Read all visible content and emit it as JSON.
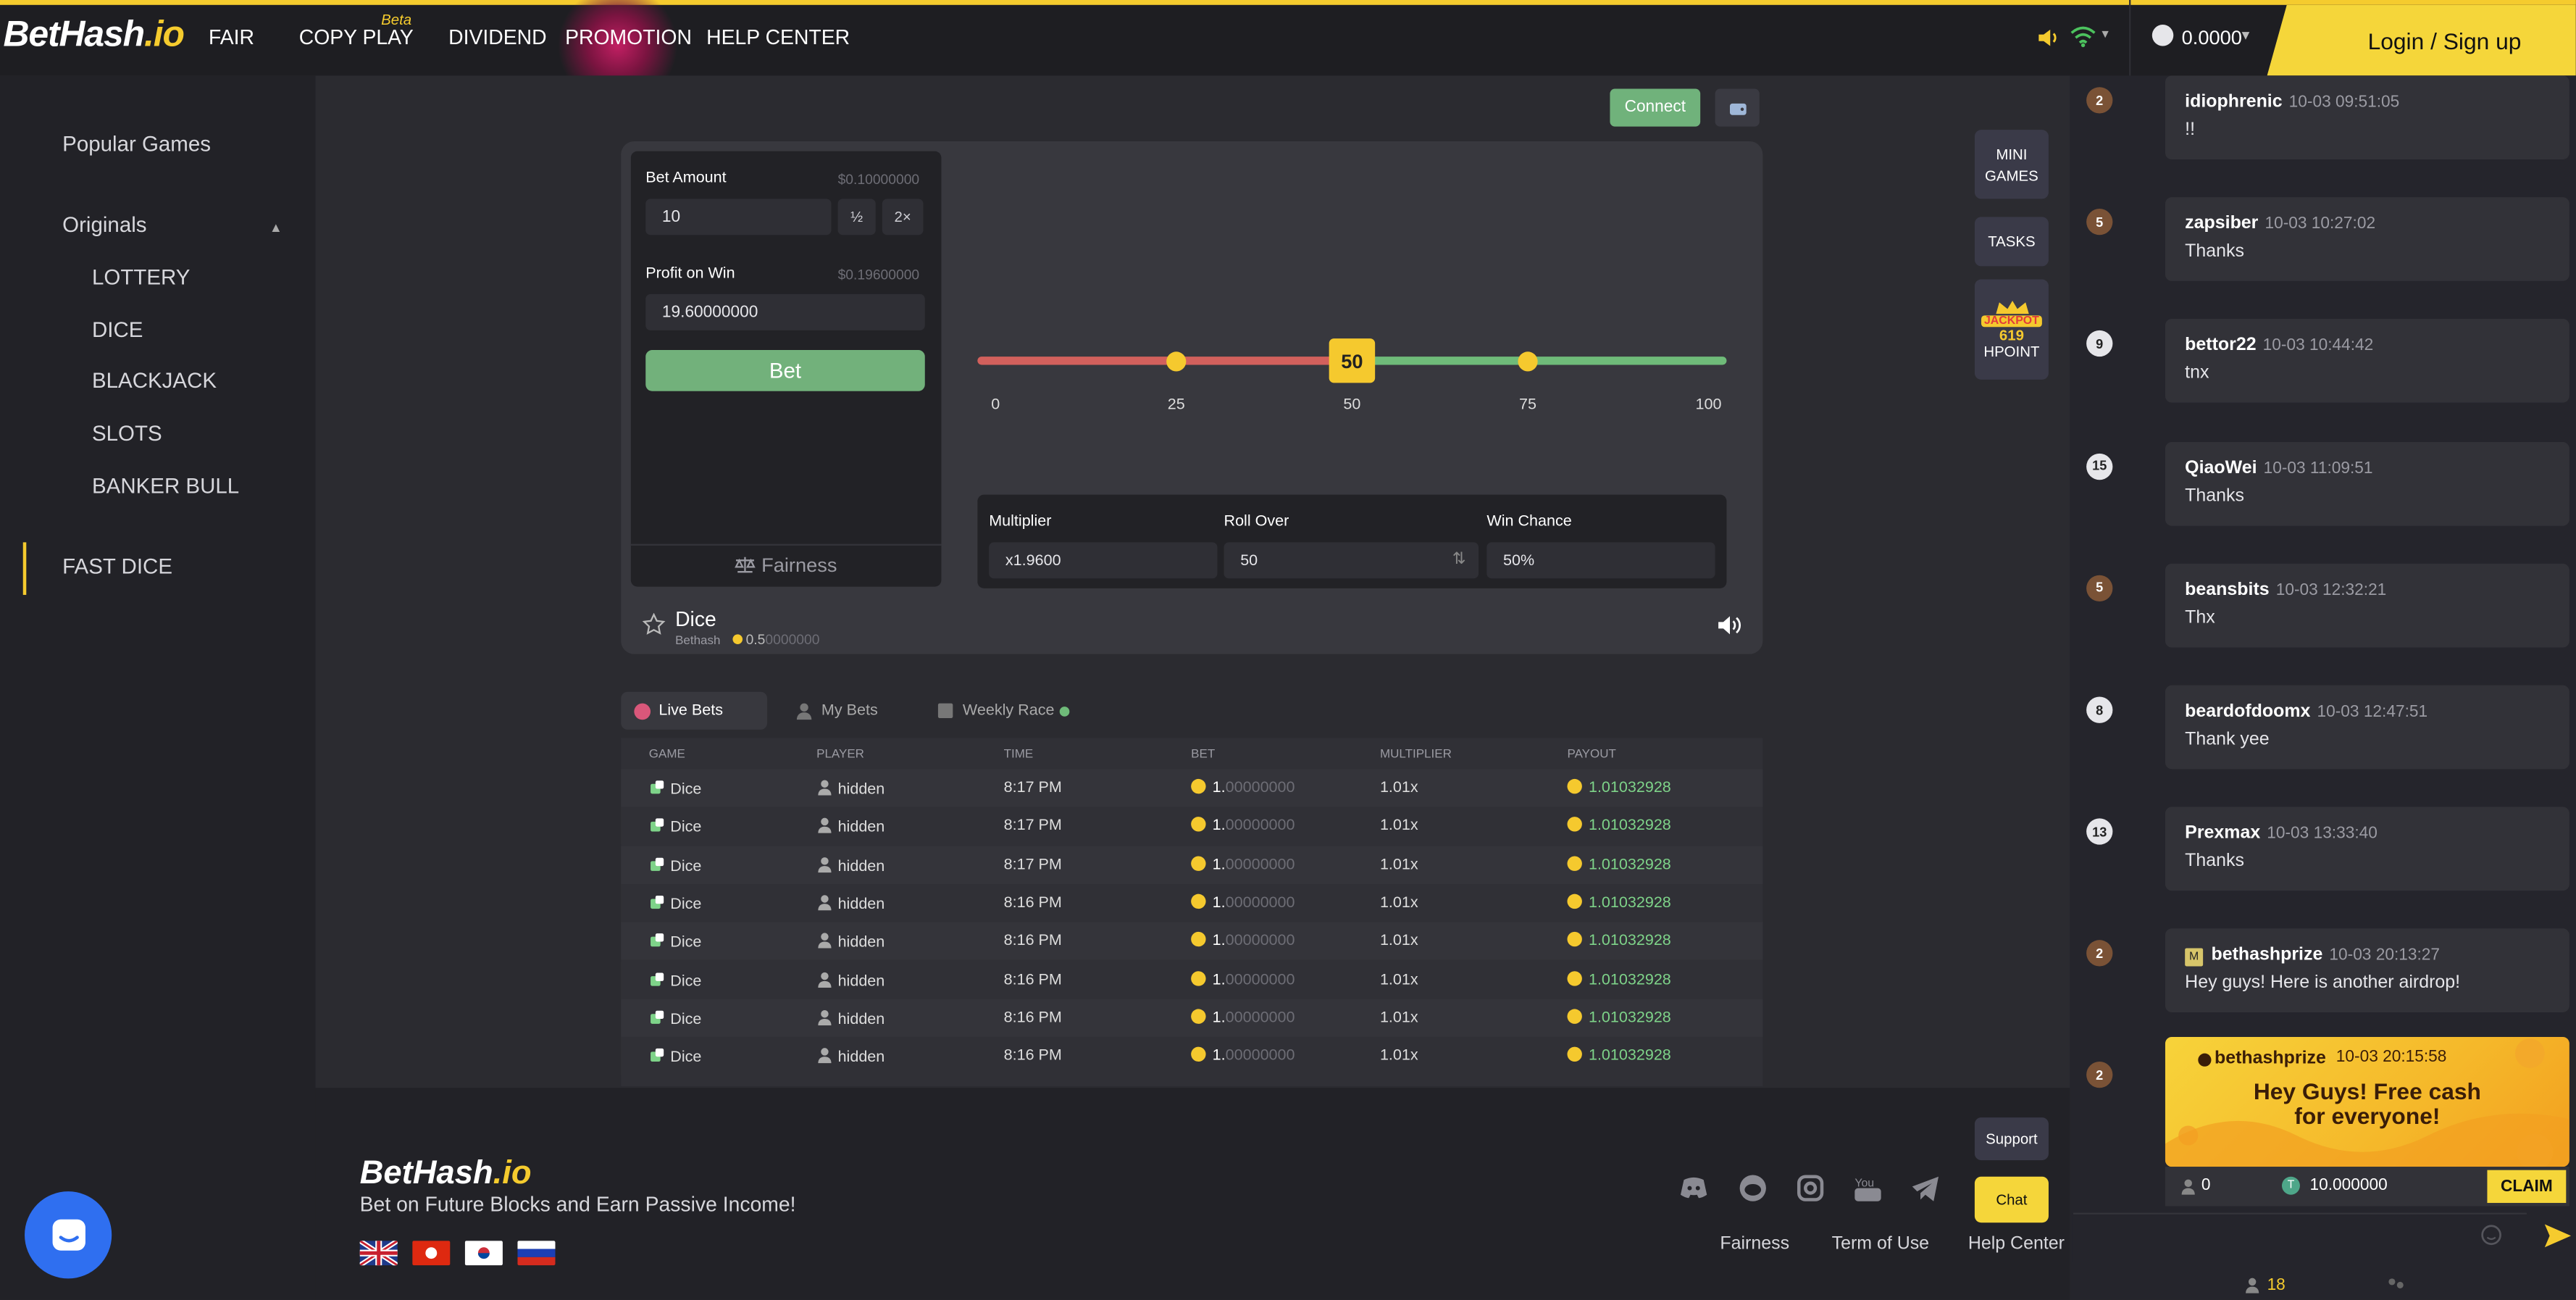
{
  "header": {
    "logo_main": "BetHash",
    "logo_suffix": ".io",
    "nav": [
      "FAIR",
      "COPY PLAY",
      "DIVIDEND",
      "PROMOTION",
      "HELP CENTER"
    ],
    "beta": "Beta",
    "balance": "0.0000",
    "login": "Login / Sign up",
    "accent": "#f5cb2e"
  },
  "sidebar": {
    "popular": "Popular Games",
    "originals": "Originals",
    "items": [
      "LOTTERY",
      "DICE",
      "BLACKJACK",
      "SLOTS",
      "BANKER BULL"
    ],
    "fast_dice": "FAST DICE"
  },
  "topactions": {
    "connect": "Connect"
  },
  "bet": {
    "amount_label": "Bet Amount",
    "amount_limit": "$0.10000000",
    "amount_value": "10",
    "half": "½",
    "double": "2×",
    "profit_label": "Profit on Win",
    "profit_limit": "$0.19600000",
    "profit_value": "19.60000000",
    "bet_button": "Bet",
    "fairness": "Fairness"
  },
  "slider": {
    "value": 50,
    "ticks": [
      "0",
      "25",
      "50",
      "75",
      "100"
    ],
    "handle": "50"
  },
  "stats": {
    "multiplier_label": "Multiplier",
    "multiplier_value": "x1.9600",
    "rollover_label": "Roll Over",
    "rollover_value": "50",
    "winchance_label": "Win Chance",
    "winchance_value": "50%"
  },
  "game": {
    "name": "Dice",
    "provider": "Bethash",
    "value_int": "0.5",
    "value_dec": "0000000"
  },
  "tabs": [
    "Live Bets",
    "My Bets",
    "Weekly Race"
  ],
  "table": {
    "headers": [
      "GAME",
      "PLAYER",
      "TIME",
      "BET",
      "MULTIPLIER",
      "PAYOUT"
    ],
    "rows": [
      {
        "game": "Dice",
        "player": "hidden",
        "time": "8:17 PM",
        "bet_int": "1.",
        "bet_dec": "00000000",
        "mult": "1.01x",
        "payout": "1.01032928"
      },
      {
        "game": "Dice",
        "player": "hidden",
        "time": "8:17 PM",
        "bet_int": "1.",
        "bet_dec": "00000000",
        "mult": "1.01x",
        "payout": "1.01032928"
      },
      {
        "game": "Dice",
        "player": "hidden",
        "time": "8:17 PM",
        "bet_int": "1.",
        "bet_dec": "00000000",
        "mult": "1.01x",
        "payout": "1.01032928"
      },
      {
        "game": "Dice",
        "player": "hidden",
        "time": "8:16 PM",
        "bet_int": "1.",
        "bet_dec": "00000000",
        "mult": "1.01x",
        "payout": "1.01032928"
      },
      {
        "game": "Dice",
        "player": "hidden",
        "time": "8:16 PM",
        "bet_int": "1.",
        "bet_dec": "00000000",
        "mult": "1.01x",
        "payout": "1.01032928"
      },
      {
        "game": "Dice",
        "player": "hidden",
        "time": "8:16 PM",
        "bet_int": "1.",
        "bet_dec": "00000000",
        "mult": "1.01x",
        "payout": "1.01032928"
      },
      {
        "game": "Dice",
        "player": "hidden",
        "time": "8:16 PM",
        "bet_int": "1.",
        "bet_dec": "00000000",
        "mult": "1.01x",
        "payout": "1.01032928"
      },
      {
        "game": "Dice",
        "player": "hidden",
        "time": "8:16 PM",
        "bet_int": "1.",
        "bet_dec": "00000000",
        "mult": "1.01x",
        "payout": "1.01032928"
      }
    ]
  },
  "sidebuttons": {
    "mini_games_1": "MINI",
    "mini_games_2": "GAMES",
    "tasks": "TASKS",
    "jackpot_label": "JACKPOT",
    "jackpot_value": "619",
    "hpoint": "HPOINT",
    "support": "Support",
    "chat": "Chat"
  },
  "footer": {
    "logo_main": "BetHash",
    "logo_suffix": ".io",
    "tagline": "Bet on Future Blocks and Earn Passive Income!",
    "links": [
      "Fairness",
      "Term of Use",
      "Help Center"
    ]
  },
  "chat": {
    "messages": [
      {
        "level": "2",
        "user": "idiophrenic",
        "time": "10-03 09:51:05",
        "text": "!!"
      },
      {
        "level": "5",
        "user": "zapsiber",
        "time": "10-03 10:27:02",
        "text": "Thanks"
      },
      {
        "level": "9",
        "user": "bettor22",
        "time": "10-03 10:44:42",
        "text": "tnx"
      },
      {
        "level": "15",
        "user": "QiaoWei",
        "time": "10-03 11:09:51",
        "text": "Thanks"
      },
      {
        "level": "5",
        "user": "beansbits",
        "time": "10-03 12:32:21",
        "text": "Thx"
      },
      {
        "level": "8",
        "user": "beardofdoomx",
        "time": "10-03 12:47:51",
        "text": "Thank yee"
      },
      {
        "level": "13",
        "user": "Prexmax",
        "time": "10-03 13:33:40",
        "text": "Thanks"
      },
      {
        "level": "2",
        "user": "bethashprize",
        "badge": "M",
        "time": "10-03 20:13:27",
        "text": "Hey guys! Here is another airdrop!"
      }
    ],
    "airdrop": {
      "level": "2",
      "user": "bethashprize",
      "time": "10-03 20:15:58",
      "title_1": "Hey Guys! Free cash",
      "title_2": "for everyone!",
      "count": "0",
      "amount": "10.000000",
      "claim": "CLAIM"
    },
    "online": "18"
  }
}
